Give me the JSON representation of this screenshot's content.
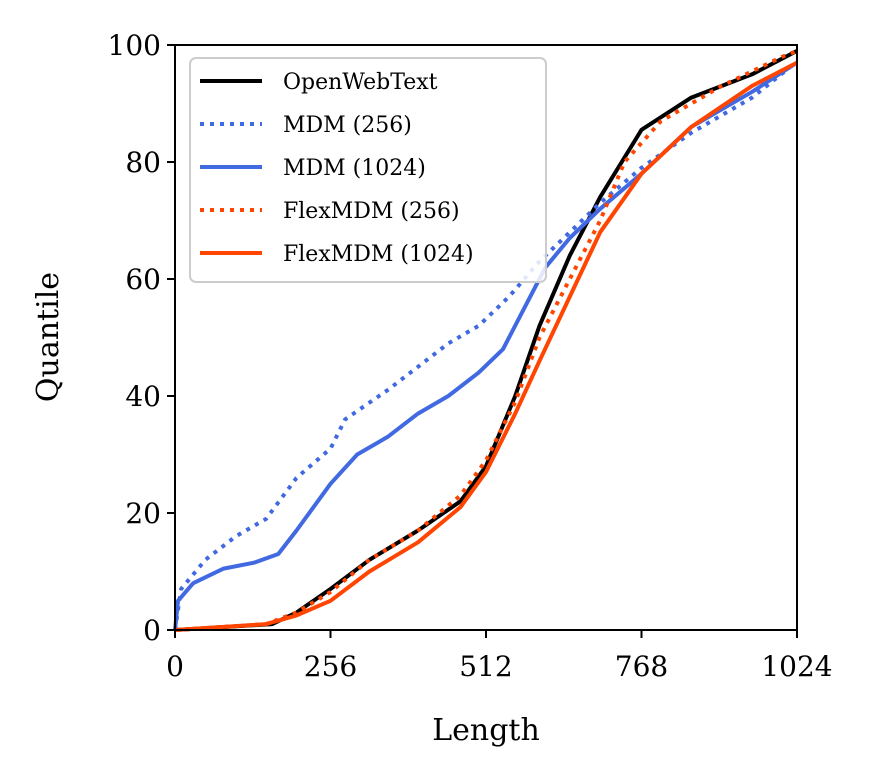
{
  "chart_data": {
    "type": "line",
    "title": "",
    "xlabel": "Length",
    "ylabel": "Quantile",
    "xlim": [
      0,
      1024
    ],
    "ylim": [
      0,
      100
    ],
    "xticks": [
      "0",
      "256",
      "512",
      "768",
      "1024"
    ],
    "yticks": [
      "0",
      "20",
      "40",
      "60",
      "80",
      "100"
    ],
    "grid": false,
    "legend_position": "top-left",
    "series": [
      {
        "name": "OpenWebText",
        "color": "#000000",
        "style": "solid",
        "x": [
          0,
          160,
          200,
          256,
          320,
          400,
          470,
          512,
          560,
          600,
          650,
          700,
          768,
          850,
          950,
          1024
        ],
        "y": [
          0,
          1,
          3,
          7,
          12,
          17,
          22,
          28,
          40,
          52,
          64,
          74,
          85.5,
          91,
          95,
          99
        ]
      },
      {
        "name": "MDM (256)",
        "color": "#4169E1",
        "style": "dotted",
        "x": [
          0,
          10,
          50,
          100,
          150,
          200,
          256,
          280,
          350,
          400,
          450,
          500,
          550,
          600,
          650,
          700,
          768,
          850,
          950,
          1010
        ],
        "y": [
          0,
          7,
          12,
          16,
          19,
          26,
          31,
          36,
          41,
          45,
          49,
          52,
          57,
          63,
          68,
          73,
          79,
          85,
          91,
          96
        ]
      },
      {
        "name": "MDM (1024)",
        "color": "#4169E1",
        "style": "solid",
        "x": [
          0,
          5,
          30,
          80,
          130,
          170,
          200,
          256,
          300,
          350,
          400,
          450,
          500,
          540,
          570,
          610,
          650,
          700,
          768,
          850,
          950,
          1024
        ],
        "y": [
          0,
          5,
          8,
          10.5,
          11.5,
          13,
          17,
          25,
          30,
          33,
          37,
          40,
          44,
          48,
          54,
          62,
          67,
          72,
          78,
          86,
          92,
          97
        ]
      },
      {
        "name": "FlexMDM (256)",
        "color": "#FF4500",
        "style": "dotted",
        "x": [
          0,
          150,
          200,
          256,
          320,
          400,
          470,
          512,
          560,
          600,
          650,
          700,
          740,
          800,
          900,
          1000,
          1024
        ],
        "y": [
          0,
          1,
          3,
          6.5,
          12,
          17,
          23,
          29,
          39,
          50,
          60,
          70,
          80,
          87,
          93,
          98,
          99
        ]
      },
      {
        "name": "FlexMDM (1024)",
        "color": "#FF4500",
        "style": "solid",
        "x": [
          0,
          150,
          200,
          256,
          320,
          400,
          470,
          512,
          560,
          600,
          650,
          700,
          768,
          850,
          950,
          1024
        ],
        "y": [
          0,
          1,
          2.5,
          5,
          10,
          15,
          21,
          27,
          37,
          46,
          57,
          68,
          78,
          86,
          93,
          97
        ]
      }
    ]
  }
}
